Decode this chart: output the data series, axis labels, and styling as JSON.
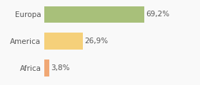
{
  "categories": [
    "Africa",
    "America",
    "Europa"
  ],
  "values": [
    3.8,
    26.9,
    69.2
  ],
  "bar_colors": [
    "#f0a875",
    "#f5d07a",
    "#a8c07a"
  ],
  "labels": [
    "3,8%",
    "26,9%",
    "69,2%"
  ],
  "xlim": [
    0,
    105
  ],
  "background_color": "#f9f9f9",
  "bar_height": 0.62,
  "label_fontsize": 7.5,
  "tick_fontsize": 7.5,
  "text_color": "#555555"
}
